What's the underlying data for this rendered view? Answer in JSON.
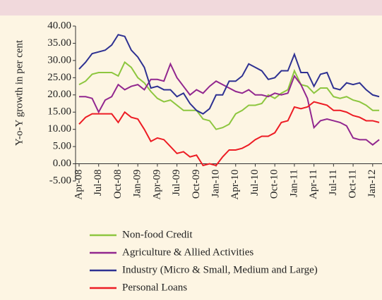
{
  "chart_data": {
    "type": "line",
    "y_label": "Y-o-Y growth in per cent",
    "categories": [
      "Apr-08",
      null,
      null,
      "Jul-08",
      null,
      null,
      "Oct-08",
      null,
      null,
      "Jan-09",
      null,
      null,
      "Apr-09",
      null,
      null,
      "Jul-09",
      null,
      null,
      "Oct-09",
      null,
      null,
      "Jan-10",
      null,
      null,
      "Apr-10",
      null,
      null,
      "Jul-10",
      null,
      null,
      "Oct-10",
      null,
      null,
      "Jan-11",
      null,
      null,
      "Apr-11",
      null,
      null,
      "Jul-11",
      null,
      null,
      "Oct-11",
      null,
      null,
      "Jan-12",
      null
    ],
    "series": [
      {
        "name": "Non-food Credit",
        "color": "#8dc63f",
        "values": [
          23,
          24,
          26,
          26.5,
          26.5,
          26.5,
          25.5,
          29.5,
          28,
          25,
          23.5,
          21,
          19,
          18,
          18.5,
          17,
          15.5,
          15.5,
          15.5,
          13,
          12.5,
          10,
          10.5,
          11.5,
          14.5,
          15.5,
          17,
          17,
          17.5,
          20,
          19,
          20.5,
          21.5,
          27,
          23,
          22.5,
          20.5,
          22,
          22,
          19.5,
          19,
          19.5,
          18.5,
          18,
          17,
          15.5,
          15.5
        ]
      },
      {
        "name": "Agriculture & Allied Activities",
        "color": "#92278f",
        "values": [
          19.5,
          19.5,
          19,
          15,
          18.5,
          19.5,
          23,
          21.5,
          22.5,
          23,
          21.5,
          24.5,
          24.5,
          24,
          29,
          25,
          22.5,
          20,
          21.5,
          20.5,
          22.5,
          24,
          23,
          22,
          21,
          20.5,
          21.5,
          20,
          20,
          19.5,
          20.5,
          20,
          20.5,
          25.5,
          23,
          19,
          10.5,
          12.5,
          13,
          12.5,
          12,
          11,
          7.5,
          7,
          7,
          5.5,
          7
        ]
      },
      {
        "name": "Industry (Micro & Small, Medium and Large)",
        "color": "#2e3192",
        "values": [
          27.5,
          29.5,
          32,
          32.5,
          33,
          34.5,
          37.5,
          37,
          33,
          31,
          28,
          22,
          22.5,
          21.5,
          21.5,
          19.5,
          20.5,
          17.5,
          15.5,
          14.5,
          16,
          20,
          20,
          24,
          24,
          25.5,
          29,
          28,
          27,
          24.5,
          25,
          27,
          27,
          31.8,
          26.5,
          26.5,
          22.5,
          26,
          26.5,
          22,
          21.5,
          23.5,
          23,
          23.5,
          21.5,
          20,
          19.5
        ]
      },
      {
        "name": "Personal Loans",
        "color": "#ed1c24",
        "values": [
          11.5,
          13.5,
          14.5,
          14.5,
          14.5,
          14.5,
          12,
          15,
          13.5,
          13,
          10,
          6.5,
          7.5,
          7,
          5,
          3,
          3.5,
          2,
          2.5,
          -0.5,
          0,
          -0.5,
          2,
          4,
          4,
          4.5,
          5.5,
          7,
          8,
          8,
          9,
          12,
          12.5,
          16.5,
          16,
          16.5,
          18,
          17.5,
          17,
          15.5,
          15.5,
          15,
          14,
          13.5,
          12.5,
          12.5,
          12
        ]
      }
    ],
    "ylim": [
      -5,
      40
    ],
    "yticks": [
      {
        "value": -5,
        "label": "-5.00"
      },
      {
        "value": 0,
        "label": "0.00"
      },
      {
        "value": 5,
        "label": "5.00"
      },
      {
        "value": 10,
        "label": "10.00"
      },
      {
        "value": 15,
        "label": "15.00"
      },
      {
        "value": 20,
        "label": "20.00"
      },
      {
        "value": 25,
        "label": "25.00"
      },
      {
        "value": 30,
        "label": "30.00"
      },
      {
        "value": 35,
        "label": "35.00"
      },
      {
        "value": 40,
        "label": "40.00"
      }
    ]
  }
}
